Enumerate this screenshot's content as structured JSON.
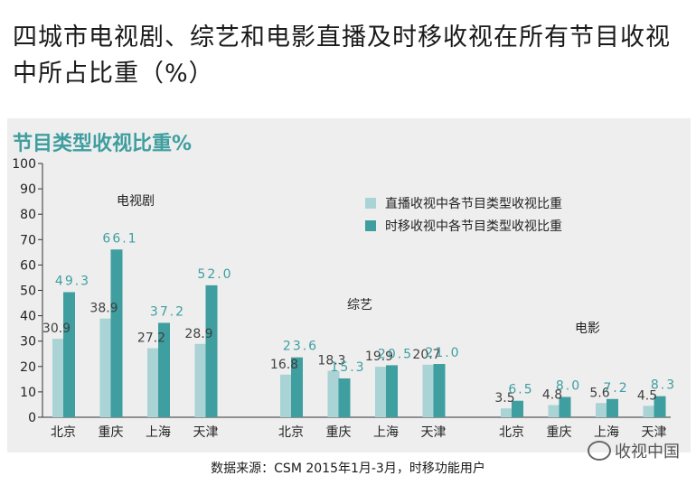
{
  "title": "四城市电视剧、综艺和电影直播及时移收视在所有节目收视中所占比重（%）",
  "subtitle": "节目类型收视比重%",
  "source_note": "数据来源：CSM 2015年1月-3月，时移功能用户",
  "watermark": "收视中国",
  "colors": {
    "live": "#a9d3d4",
    "timeshift": "#3f9e9f",
    "live_label": "#404040",
    "timeshift_label": "#3f9e9f"
  },
  "chart_data": {
    "type": "bar",
    "title": "节目类型收视比重%",
    "ylim": [
      0,
      100
    ],
    "yticks": [
      0,
      10,
      20,
      30,
      40,
      50,
      60,
      70,
      80,
      90,
      100
    ],
    "legend_position": "top-right",
    "series_names": [
      "直播收视中各节目类型收视比重",
      "时移收视中各节目类型收视比重"
    ],
    "groups": [
      {
        "name": "电视剧",
        "categories": [
          "北京",
          "重庆",
          "上海",
          "天津"
        ],
        "live": [
          30.9,
          38.9,
          27.2,
          28.9
        ],
        "timeshift": [
          49.3,
          66.1,
          37.2,
          52.0
        ],
        "live_labels": [
          "30.9",
          "38.9",
          "27.2",
          "28.9"
        ],
        "timeshift_labels": [
          "49.3",
          "66.1",
          "37.2",
          "52.0"
        ]
      },
      {
        "name": "综艺",
        "categories": [
          "北京",
          "重庆",
          "上海",
          "天津"
        ],
        "live": [
          16.8,
          18.3,
          19.9,
          20.7
        ],
        "timeshift": [
          23.6,
          15.3,
          20.5,
          21.0
        ],
        "live_labels": [
          "16.8",
          "18.3",
          "19.9",
          "20.7"
        ],
        "timeshift_labels": [
          "23.6",
          "15.3",
          "20.5",
          "21.0"
        ]
      },
      {
        "name": "电影",
        "categories": [
          "北京",
          "重庆",
          "上海",
          "天津"
        ],
        "live": [
          3.5,
          4.8,
          5.6,
          4.5
        ],
        "timeshift": [
          6.5,
          8.0,
          7.2,
          8.3
        ],
        "live_labels": [
          "3.5",
          "4.8",
          "5.6",
          "4.5"
        ],
        "timeshift_labels": [
          "6.5",
          "8.0",
          "7.2",
          "8.3"
        ]
      }
    ]
  }
}
